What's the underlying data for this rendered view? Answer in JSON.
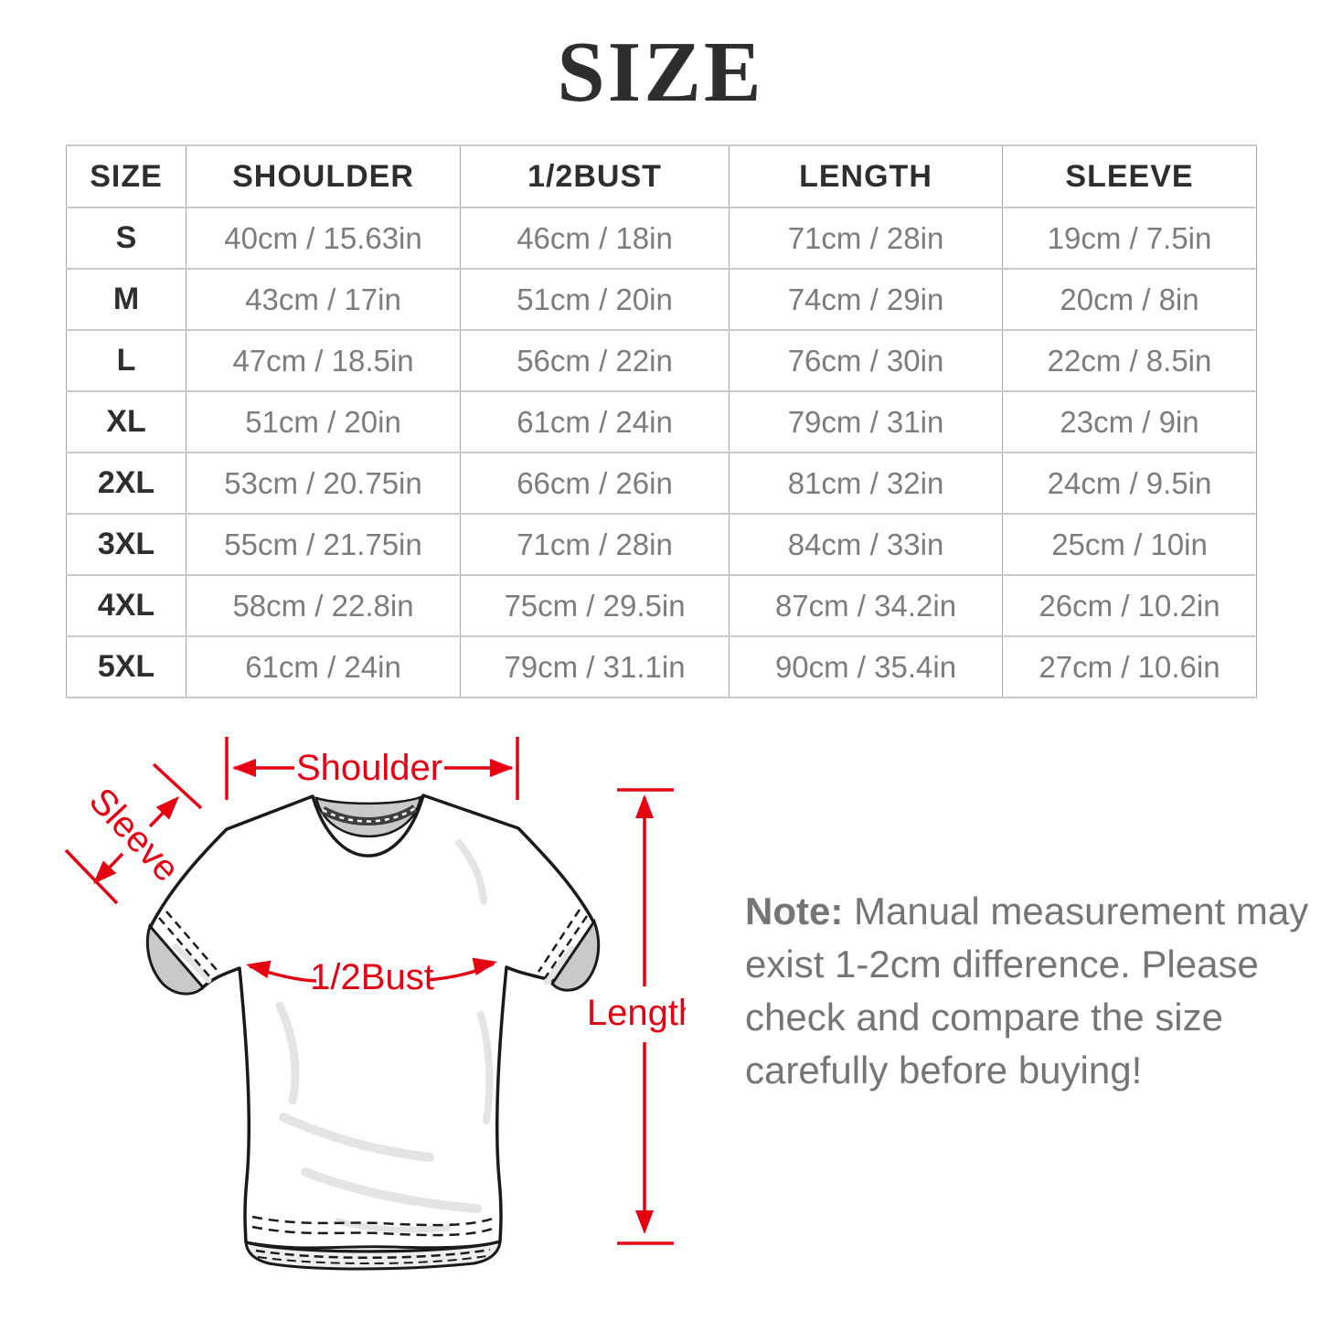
{
  "title": "SIZE",
  "table": {
    "headers": [
      "SIZE",
      "SHOULDER",
      "1/2BUST",
      "LENGTH",
      "SLEEVE"
    ],
    "rows": [
      [
        "S",
        "40cm / 15.63in",
        "46cm / 18in",
        "71cm / 28in",
        "19cm / 7.5in"
      ],
      [
        "M",
        "43cm / 17in",
        "51cm / 20in",
        "74cm / 29in",
        "20cm / 8in"
      ],
      [
        "L",
        "47cm / 18.5in",
        "56cm / 22in",
        "76cm / 30in",
        "22cm / 8.5in"
      ],
      [
        "XL",
        "51cm / 20in",
        "61cm / 24in",
        "79cm / 31in",
        "23cm / 9in"
      ],
      [
        "2XL",
        "53cm / 20.75in",
        "66cm / 26in",
        "81cm / 32in",
        "24cm / 9.5in"
      ],
      [
        "3XL",
        "55cm / 21.75in",
        "71cm / 28in",
        "84cm / 33in",
        "25cm / 10in"
      ],
      [
        "4XL",
        "58cm / 22.8in",
        "75cm / 29.5in",
        "87cm / 34.2in",
        "26cm / 10.2in"
      ],
      [
        "5XL",
        "61cm / 24in",
        "79cm / 31.1in",
        "90cm / 35.4in",
        "27cm / 10.6in"
      ]
    ]
  },
  "diagram": {
    "labels": {
      "shoulder": "Shoulder",
      "sleeve": "Sleeve",
      "bust": "1/2Bust",
      "length": "Length"
    }
  },
  "note": {
    "bold_prefix": "Note:",
    "lines": [
      "Note: Manual measurement may",
      "exist 1-2cm difference. Please",
      "check and compare the size",
      "carefully before buying!"
    ]
  },
  "colors": {
    "accent_red": "#e60012",
    "heading_text": "#2e2e2e",
    "value_text": "#7c7c7c",
    "note_text": "#757575"
  }
}
